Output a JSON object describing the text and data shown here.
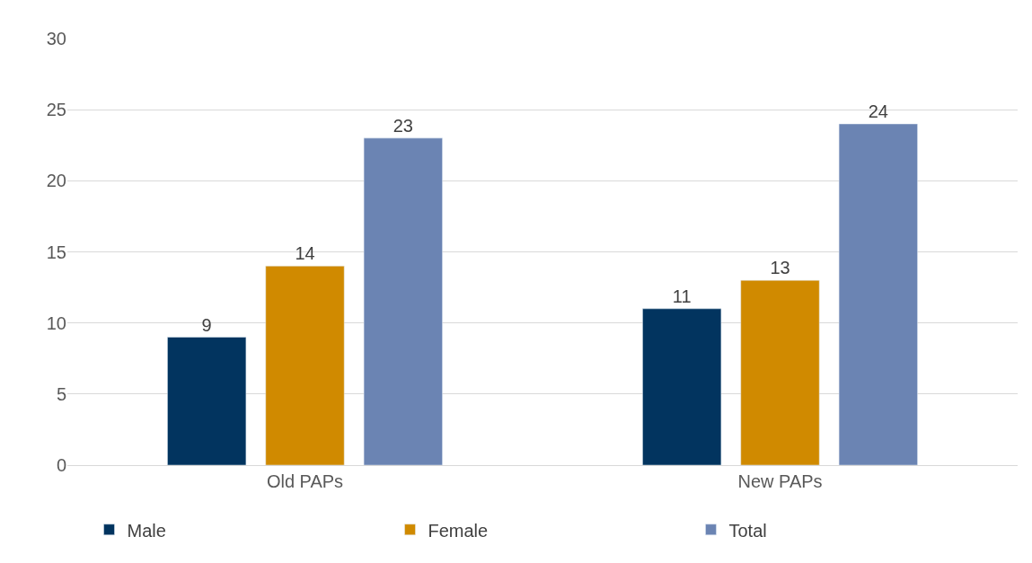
{
  "chart_data": {
    "type": "bar",
    "categories": [
      "Old PAPs",
      "New PAPs"
    ],
    "series": [
      {
        "name": "Male",
        "color": "#02345f",
        "values": [
          9,
          11
        ]
      },
      {
        "name": "Female",
        "color": "#d08a00",
        "values": [
          14,
          13
        ]
      },
      {
        "name": "Total",
        "color": "#6b84b3",
        "values": [
          23,
          24
        ]
      }
    ],
    "ylim": [
      0,
      30
    ],
    "yticks": [
      0,
      5,
      10,
      15,
      20,
      25,
      30
    ],
    "grid": "y",
    "legend": "bottom",
    "data_labels": true
  }
}
